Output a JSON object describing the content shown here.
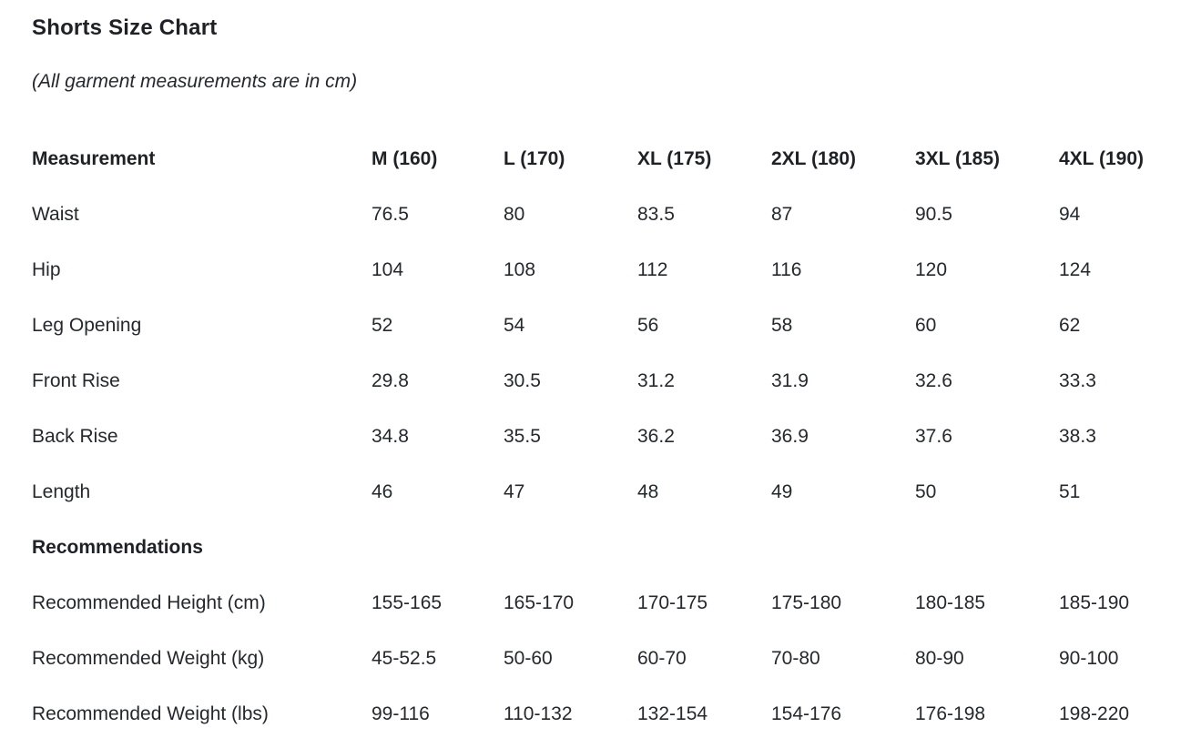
{
  "page": {
    "title": "Shorts Size Chart",
    "unit_note": "(All garment measurements are in cm)"
  },
  "table": {
    "columns": [
      "Measurement",
      "M (160)",
      "L (170)",
      "XL (175)",
      "2XL (180)",
      "3XL (185)",
      "4XL (190)"
    ],
    "rows": [
      {
        "label": "Waist",
        "values": [
          "76.5",
          "80",
          "83.5",
          "87",
          "90.5",
          "94"
        ]
      },
      {
        "label": "Hip",
        "values": [
          "104",
          "108",
          "112",
          "116",
          "120",
          "124"
        ]
      },
      {
        "label": "Leg Opening",
        "values": [
          "52",
          "54",
          "56",
          "58",
          "60",
          "62"
        ]
      },
      {
        "label": "Front Rise",
        "values": [
          "29.8",
          "30.5",
          "31.2",
          "31.9",
          "32.6",
          "33.3"
        ]
      },
      {
        "label": "Back Rise",
        "values": [
          "34.8",
          "35.5",
          "36.2",
          "36.9",
          "37.6",
          "38.3"
        ]
      },
      {
        "label": "Length",
        "values": [
          "46",
          "47",
          "48",
          "49",
          "50",
          "51"
        ]
      }
    ],
    "section_heading": "Recommendations",
    "recommendation_rows": [
      {
        "label": "Recommended Height (cm)",
        "values": [
          "155-165",
          "165-170",
          "170-175",
          "175-180",
          "180-185",
          "185-190"
        ]
      },
      {
        "label": "Recommended Weight (kg)",
        "values": [
          "45-52.5",
          "50-60",
          "60-70",
          "70-80",
          "80-90",
          "90-100"
        ]
      },
      {
        "label": "Recommended Weight (lbs)",
        "values": [
          "99-116",
          "110-132",
          "132-154",
          "154-176",
          "176-198",
          "198-220"
        ]
      }
    ]
  },
  "colors": {
    "background": "#ffffff",
    "text": "#24292e",
    "heading_text": "#1e2226"
  }
}
